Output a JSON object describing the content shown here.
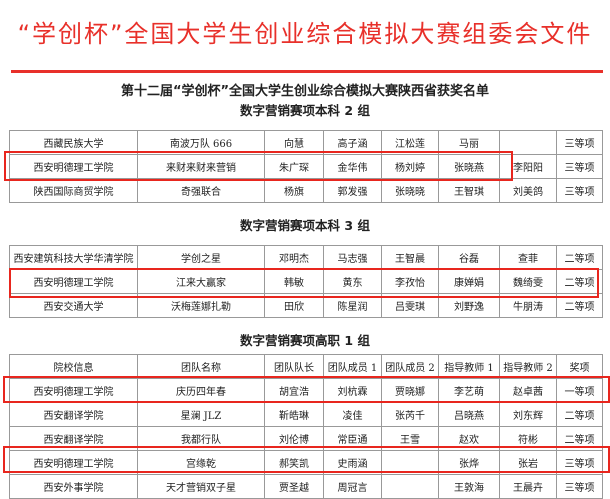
{
  "header": {
    "title": "“学创杯”全国大学生创业综合模拟大赛组委会文件",
    "subtitle": "第十二届“学创杯”全国大学生创业综合模拟大赛陕西省获奖名单"
  },
  "highlight_color": "#e8261e",
  "sections": [
    {
      "title": "数字营销赛项本科 2 组",
      "rows": [
        [
          "西藏民族大学",
          "南波万队 666",
          "向慧",
          "高子涵",
          "江松莲",
          "马丽",
          "",
          "三等项"
        ],
        [
          "西安明德理工学院",
          "来财来财来营销",
          "朱广琛",
          "金华伟",
          "杨刘婷",
          "张晓燕",
          "李阳阳",
          "三等项"
        ],
        [
          "陕西国际商贸学院",
          "奇强联合",
          "杨旗",
          "郭发强",
          "张晓晓",
          "王智琪",
          "刘美鸽",
          "三等项"
        ]
      ]
    },
    {
      "title": "数字营销赛项本科 3 组",
      "rows": [
        [
          "西安建筑科技大学华清学院",
          "学创之星",
          "邓明杰",
          "马志强",
          "王智晨",
          "谷磊",
          "查菲",
          "二等项"
        ],
        [
          "西安明德理工学院",
          "江来大赢家",
          "韩敏",
          "黄东",
          "李孜怡",
          "康婵娟",
          "魏绮雯",
          "二等项"
        ],
        [
          "西安交通大学",
          "沃梅莲娜扎勒",
          "田欣",
          "陈星润",
          "吕雯琪",
          "刘野逸",
          "牛朋涛",
          "二等项"
        ]
      ]
    },
    {
      "title": "数字营销赛项高职 1 组",
      "header": [
        "院校信息",
        "团队名称",
        "团队队长",
        "团队成员 1",
        "团队成员 2",
        "指导教师 1",
        "指导教师 2",
        "奖项"
      ],
      "rows": [
        [
          "西安明德理工学院",
          "庆历四年春",
          "胡宜浩",
          "刘杭霖",
          "贾晓娜",
          "李艺萌",
          "赵卓茜",
          "一等项"
        ],
        [
          "西安翻译学院",
          "星澜 JLZ",
          "靳皓琳",
          "凌佳",
          "张芮千",
          "吕晓燕",
          "刘东辉",
          "二等项"
        ],
        [
          "西安翻译学院",
          "我都行队",
          "刘伦博",
          "常臣通",
          "王雪",
          "赵欢",
          "符彬",
          "二等项"
        ],
        [
          "西安明德理工学院",
          "宫缘乾",
          "郝笑凯",
          "史雨涵",
          "",
          "张烨",
          "张岩",
          "三等项"
        ],
        [
          "西安外事学院",
          "天才营销双子星",
          "贾圣越",
          "周冠言",
          "",
          "王敦海",
          "王晨卉",
          "三等项"
        ]
      ]
    }
  ]
}
